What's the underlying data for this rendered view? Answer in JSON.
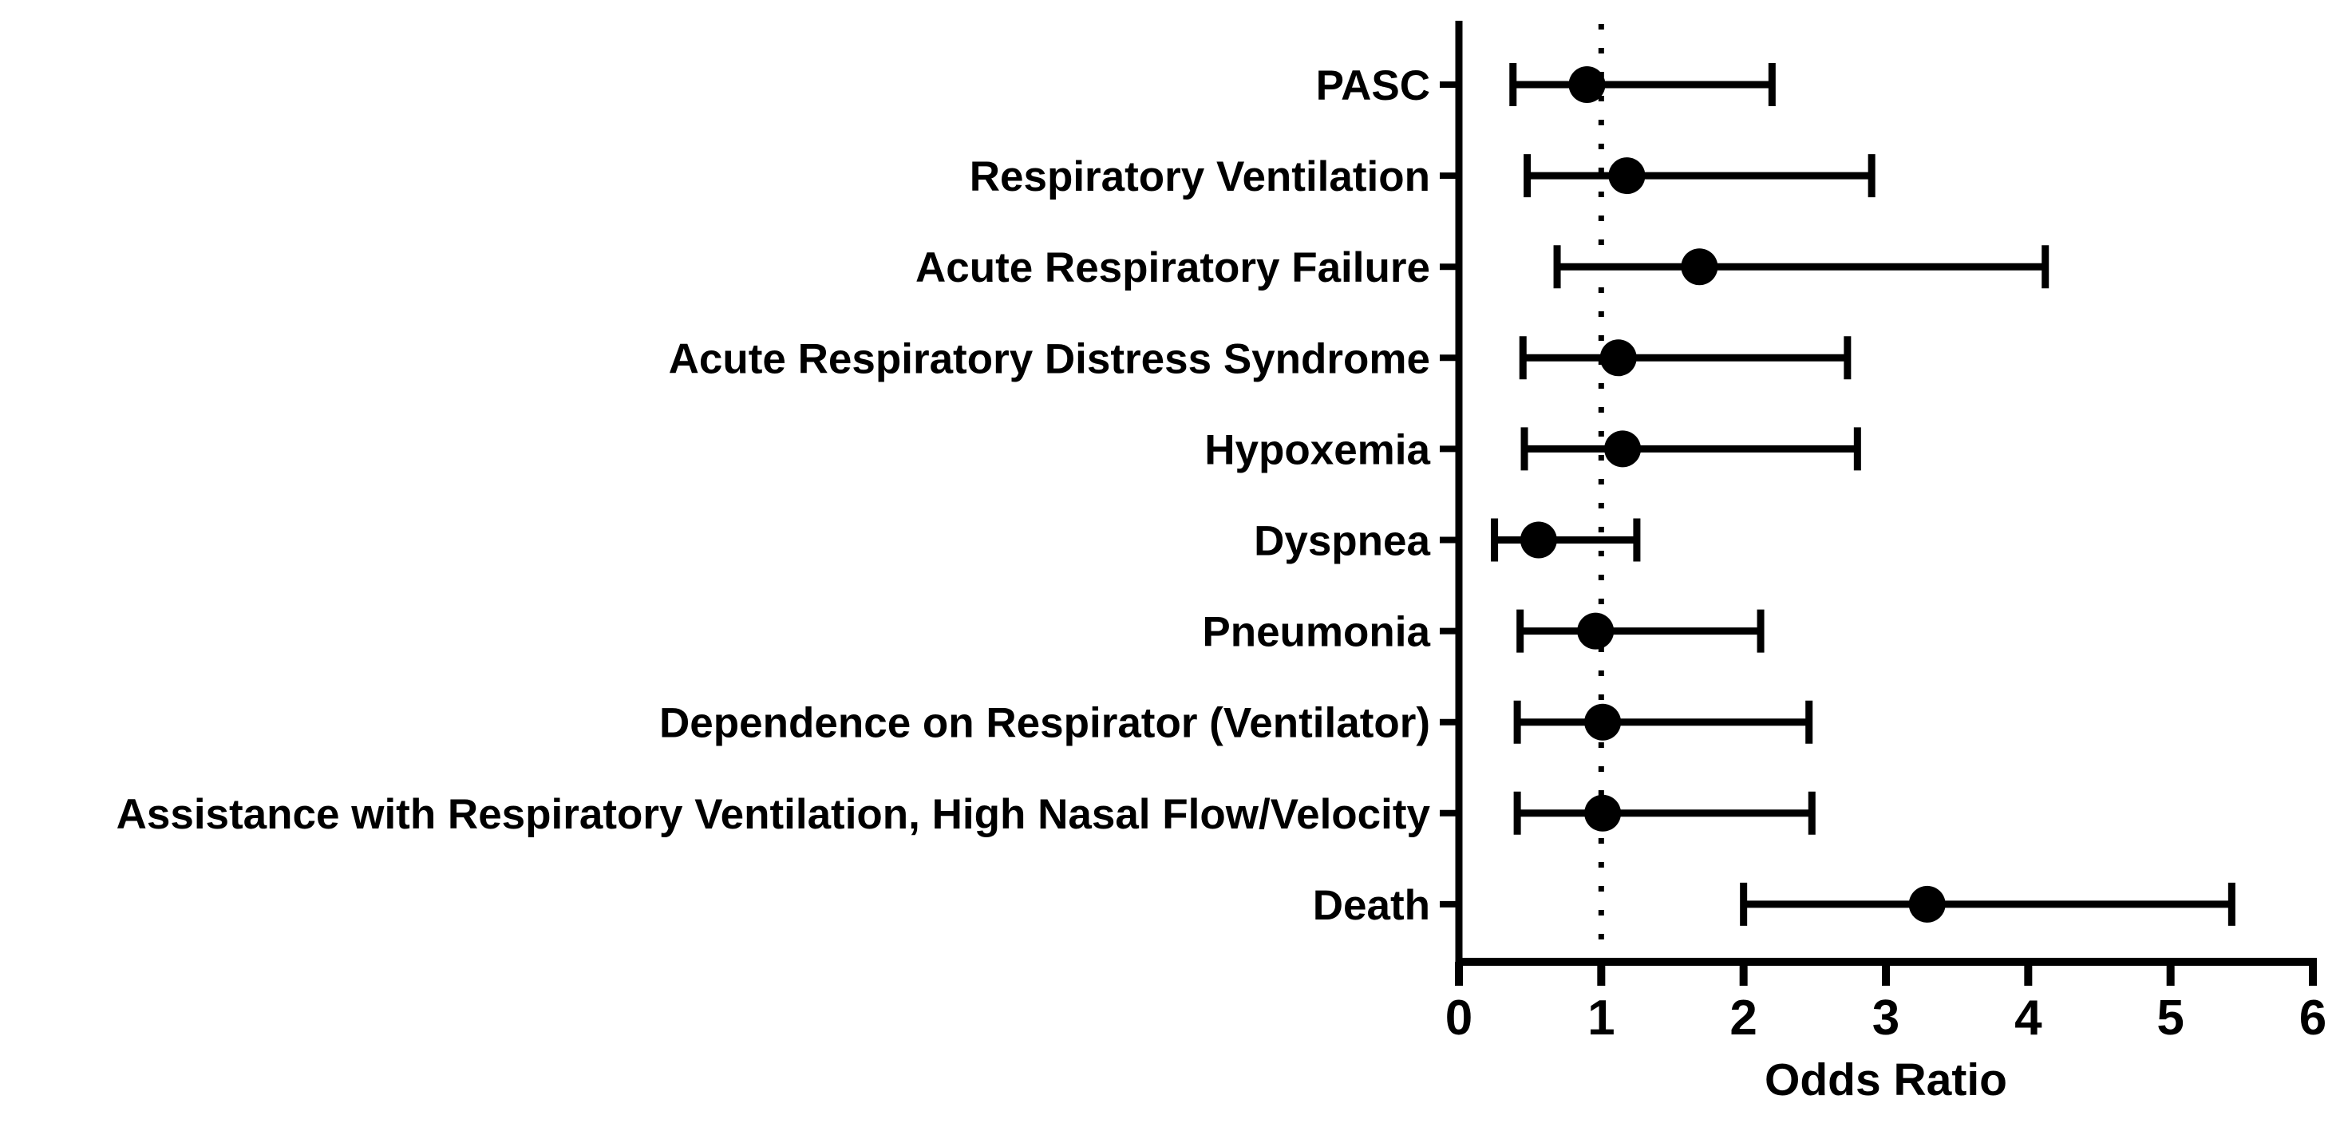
{
  "figure": {
    "background_color": "#ffffff",
    "ink_color": "#000000",
    "description": "Forest plot of odds ratios with 95% confidence intervals for respiratory outcomes"
  },
  "chart_data": {
    "type": "scatter",
    "subtype": "forest-plot",
    "title": "",
    "xlabel": "Odds Ratio",
    "ylabel": "",
    "xlim": [
      0,
      6
    ],
    "x_ticks": [
      0,
      1,
      2,
      3,
      4,
      5,
      6
    ],
    "grid": false,
    "legend_position": "none",
    "marker_style": "filled-circle",
    "reference_line": {
      "x": 1,
      "style": "dotted"
    },
    "categories": [
      "PASC",
      "Respiratory Ventilation",
      "Acute Respiratory Failure",
      "Acute Respiratory Distress Syndrome",
      "Hypoxemia",
      "Dyspnea",
      "Pneumonia",
      "Dependence on Respirator (Ventilator)",
      "Assistance with Respiratory Ventilation, High Nasal Flow/Velocity",
      "Death"
    ],
    "series": [
      {
        "name": "Odds Ratio (95% CI)",
        "rows": [
          {
            "label": "PASC",
            "or": 0.9,
            "ci_low": 0.38,
            "ci_high": 2.2
          },
          {
            "label": "Respiratory Ventilation",
            "or": 1.18,
            "ci_low": 0.48,
            "ci_high": 2.9
          },
          {
            "label": "Acute Respiratory Failure",
            "or": 1.69,
            "ci_low": 0.69,
            "ci_high": 4.12
          },
          {
            "label": "Acute Respiratory Distress Syndrome",
            "or": 1.12,
            "ci_low": 0.45,
            "ci_high": 2.73
          },
          {
            "label": "Hypoxemia",
            "or": 1.15,
            "ci_low": 0.46,
            "ci_high": 2.8
          },
          {
            "label": "Dyspnea",
            "or": 0.56,
            "ci_low": 0.25,
            "ci_high": 1.25
          },
          {
            "label": "Pneumonia",
            "or": 0.96,
            "ci_low": 0.43,
            "ci_high": 2.12
          },
          {
            "label": "Dependence on Respirator (Ventilator)",
            "or": 1.01,
            "ci_low": 0.41,
            "ci_high": 2.46
          },
          {
            "label": "Assistance with Respiratory Ventilation, High Nasal Flow/Velocity",
            "or": 1.01,
            "ci_low": 0.41,
            "ci_high": 2.48
          },
          {
            "label": "Death",
            "or": 3.29,
            "ci_low": 2.0,
            "ci_high": 5.43
          }
        ]
      }
    ]
  }
}
